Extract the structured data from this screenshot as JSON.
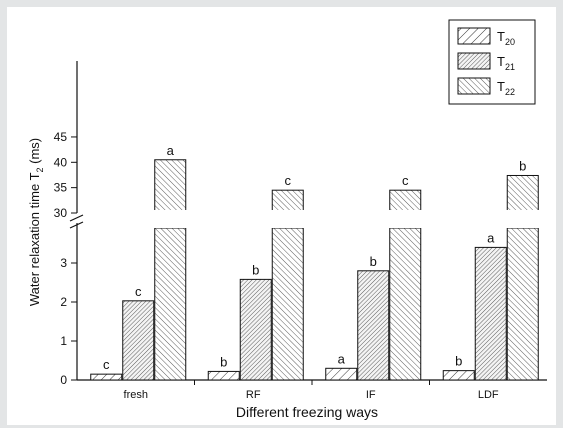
{
  "chart_data": {
    "type": "bar",
    "xlabel": "Different freezing ways",
    "ylabel_main": "Water relaxation time T",
    "ylabel_sub": "2",
    "ylabel_unit": " (ms)",
    "categories": [
      "fresh",
      "RF",
      "IF",
      "LDF"
    ],
    "y_axis_break": {
      "lower_range": [
        0,
        4
      ],
      "upper_range": [
        30,
        45
      ]
    },
    "lower_ticks": [
      "0",
      "1",
      "2",
      "3"
    ],
    "upper_ticks": [
      "30",
      "35",
      "40",
      "45"
    ],
    "grid": false,
    "legend_position": "top-right",
    "series": [
      {
        "name_main": "T",
        "name_sub": "20",
        "values": [
          0.15,
          0.22,
          0.3,
          0.24
        ],
        "letters": [
          "c",
          "b",
          "a",
          "b"
        ],
        "hatch": "light"
      },
      {
        "name_main": "T",
        "name_sub": "21",
        "values": [
          2.03,
          2.58,
          2.8,
          3.4
        ],
        "letters": [
          "c",
          "b",
          "b",
          "a"
        ],
        "hatch": "dense"
      },
      {
        "name_main": "T",
        "name_sub": "22",
        "values": [
          40.5,
          34.5,
          34.5,
          37.4
        ],
        "letters": [
          "a",
          "c",
          "c",
          "b"
        ],
        "hatch": "medium"
      }
    ]
  }
}
